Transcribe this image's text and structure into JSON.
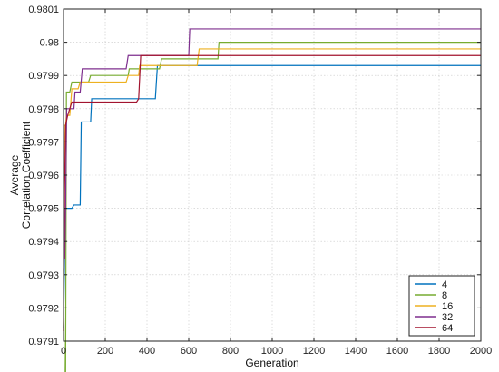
{
  "chart_data": {
    "type": "line",
    "xlabel": "Generation",
    "ylabel_lines": [
      "Average",
      "Correlation Coefficient"
    ],
    "xlim": [
      0,
      2000
    ],
    "ylim": [
      0.9791,
      0.9801
    ],
    "x_ticks": [
      0,
      200,
      400,
      600,
      800,
      1000,
      1200,
      1400,
      1600,
      1800,
      2000
    ],
    "x_tick_labels": [
      "0",
      "200",
      "400",
      "600",
      "800",
      "1000",
      "1200",
      "1400",
      "1600",
      "1800",
      "2000"
    ],
    "y_ticks": [
      0.9791,
      0.9792,
      0.9793,
      0.9794,
      0.9795,
      0.9796,
      0.9797,
      0.9798,
      0.9799,
      0.98,
      0.9801
    ],
    "y_tick_labels": [
      "0.9791",
      "0.9792",
      "0.9793",
      "0.9794",
      "0.9795",
      "0.9796",
      "0.9797",
      "0.9798",
      "0.9799",
      "0.98",
      "0.9801"
    ],
    "grid": true,
    "legend_position": "bottom-right",
    "series": [
      {
        "name": "4",
        "color": "#0072BD",
        "points": [
          [
            0,
            0.97914
          ],
          [
            5,
            0.97935
          ],
          [
            10,
            0.9795
          ],
          [
            40,
            0.9795
          ],
          [
            50,
            0.97951
          ],
          [
            80,
            0.97951
          ],
          [
            85,
            0.97976
          ],
          [
            130,
            0.97976
          ],
          [
            135,
            0.97983
          ],
          [
            440,
            0.97983
          ],
          [
            450,
            0.97993
          ],
          [
            2000,
            0.97993
          ]
        ]
      },
      {
        "name": "8",
        "color": "#77AC30",
        "points": [
          [
            0,
            0.97932
          ],
          [
            4,
            0.97899
          ],
          [
            10,
            0.97899
          ],
          [
            14,
            0.97985
          ],
          [
            30,
            0.97985
          ],
          [
            40,
            0.97988
          ],
          [
            120,
            0.97988
          ],
          [
            130,
            0.9799
          ],
          [
            310,
            0.9799
          ],
          [
            315,
            0.97992
          ],
          [
            460,
            0.97992
          ],
          [
            470,
            0.97995
          ],
          [
            740,
            0.97995
          ],
          [
            745,
            0.98
          ],
          [
            2000,
            0.98
          ]
        ]
      },
      {
        "name": "16",
        "color": "#EDB120",
        "points": [
          [
            0,
            0.97913
          ],
          [
            4,
            0.97975
          ],
          [
            10,
            0.97975
          ],
          [
            14,
            0.97978
          ],
          [
            30,
            0.97978
          ],
          [
            40,
            0.97986
          ],
          [
            70,
            0.97986
          ],
          [
            80,
            0.97988
          ],
          [
            300,
            0.97988
          ],
          [
            310,
            0.9799
          ],
          [
            360,
            0.9799
          ],
          [
            365,
            0.97993
          ],
          [
            640,
            0.97993
          ],
          [
            650,
            0.97998
          ],
          [
            2000,
            0.97998
          ]
        ]
      },
      {
        "name": "32",
        "color": "#7E2F8E",
        "points": [
          [
            0,
            0.97935
          ],
          [
            6,
            0.97935
          ],
          [
            10,
            0.9795
          ],
          [
            15,
            0.9798
          ],
          [
            50,
            0.9798
          ],
          [
            55,
            0.97985
          ],
          [
            80,
            0.97985
          ],
          [
            90,
            0.97992
          ],
          [
            300,
            0.97992
          ],
          [
            310,
            0.97996
          ],
          [
            600,
            0.97996
          ],
          [
            605,
            0.98004
          ],
          [
            2000,
            0.98004
          ]
        ]
      },
      {
        "name": "64",
        "color": "#A2142F",
        "points": [
          [
            0,
            0.97913
          ],
          [
            5,
            0.97955
          ],
          [
            10,
            0.97975
          ],
          [
            20,
            0.97978
          ],
          [
            30,
            0.9798
          ],
          [
            40,
            0.97982
          ],
          [
            350,
            0.97982
          ],
          [
            360,
            0.97983
          ],
          [
            370,
            0.97996
          ],
          [
            2000,
            0.97996
          ]
        ]
      }
    ]
  }
}
